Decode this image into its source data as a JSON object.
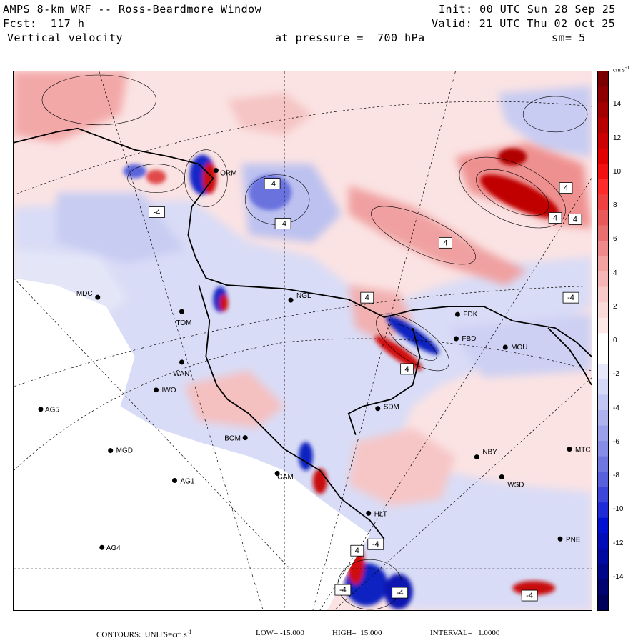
{
  "header": {
    "title": "AMPS 8-km WRF -- Ross-Beardmore Window",
    "forecast": "Fcst:  117 h",
    "field": "Vertical velocity",
    "init": "Init: 00 UTC Sun 28 Sep 25",
    "valid": "Valid: 21 UTC Thu 02 Oct 25",
    "pressure": "at pressure =  700 hPa",
    "smoothing": "sm= 5"
  },
  "colorbar": {
    "units_label": "cm s",
    "units_exp": "-1",
    "ticks": [
      "14",
      "12",
      "10",
      "8",
      "6",
      "4",
      "2",
      "0",
      "-2",
      "-4",
      "-6",
      "-8",
      "-10",
      "-12",
      "-14"
    ],
    "colors_top_to_bottom": [
      "#7a0000",
      "#8e0000",
      "#a30000",
      "#b80000",
      "#cc0000",
      "#e00000",
      "#f21010",
      "#ff2a2a",
      "#f04040",
      "#e85a5a",
      "#e87070",
      "#ee8a8a",
      "#f3a2a2",
      "#f6b6b6",
      "#f9caca",
      "#fbdada",
      "#fde8e8",
      "#ffffff",
      "#ffffff",
      "#e8e8fb",
      "#d6d8f7",
      "#c2c6f2",
      "#aeb3ee",
      "#9aa0ea",
      "#868de6",
      "#6f76e0",
      "#5860db",
      "#3c46d8",
      "#1e2bd6",
      "#0010d0",
      "#000cb8",
      "#0009a0",
      "#000688",
      "#000370",
      "#00005a"
    ]
  },
  "stations": [
    {
      "id": "MDC"
    },
    {
      "id": "NGL"
    },
    {
      "id": "FDK"
    },
    {
      "id": "FBD"
    },
    {
      "id": "MOU"
    },
    {
      "id": "IWO"
    },
    {
      "id": "AG5"
    },
    {
      "id": "SDM"
    },
    {
      "id": "BOM"
    },
    {
      "id": "MGD"
    },
    {
      "id": "NBY"
    },
    {
      "id": "MTC"
    },
    {
      "id": "AG1"
    },
    {
      "id": "GAM"
    },
    {
      "id": "WSD"
    },
    {
      "id": "PNE"
    },
    {
      "id": "AG4"
    },
    {
      "id": "WAN"
    },
    {
      "id": "TOM"
    },
    {
      "id": "ORM"
    },
    {
      "id": "HLT"
    }
  ],
  "contour_labels": [
    "-4",
    "-4",
    "-4",
    "4",
    "4",
    "4",
    "4",
    "-4",
    "4",
    "-4",
    "-4",
    "-4",
    "4",
    "-4",
    "4"
  ],
  "footer": {
    "contours": "CONTOURS:  UNITS=cm s",
    "units_exp": "-1",
    "low": "LOW= -15.000",
    "high": "HIGH=  15.000",
    "interval": "INTERVAL=   1.0000"
  }
}
